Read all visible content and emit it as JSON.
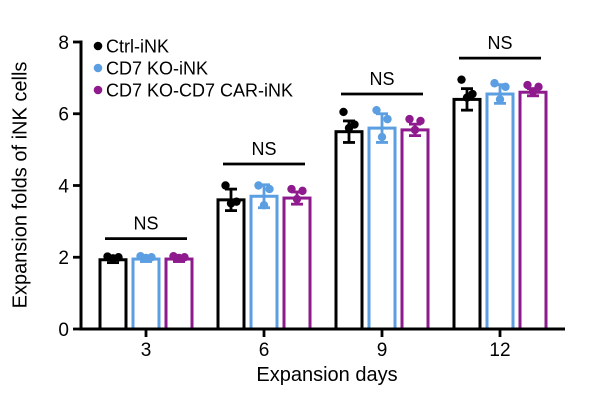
{
  "figure": {
    "background": "#ffffff",
    "axis_color": "#000000",
    "text_color": "#000000"
  },
  "chart_data": {
    "type": "bar",
    "title": "",
    "xlabel": "Expansion days",
    "ylabel": "Expansion folds of iNK cells",
    "ylim": [
      0,
      8
    ],
    "yticks": [
      0,
      2,
      4,
      6,
      8
    ],
    "categories": [
      "3",
      "6",
      "9",
      "12"
    ],
    "grid": false,
    "bar_fill": "#ffffff",
    "legend_position": "top-left",
    "series": [
      {
        "name": "Ctrl-iNK",
        "color": "#000000",
        "values": [
          1.93,
          3.6,
          5.5,
          6.4
        ],
        "sd": [
          0.08,
          0.3,
          0.3,
          0.3
        ],
        "points": [
          [
            2.02,
            2.0,
            1.97
          ],
          [
            4.0,
            3.55,
            3.5
          ],
          [
            6.05,
            5.7,
            5.6
          ],
          [
            6.95,
            6.55,
            6.45
          ]
        ]
      },
      {
        "name": "CD7 KO-iNK",
        "color": "#5B9EE1",
        "values": [
          1.95,
          3.7,
          5.6,
          6.55
        ],
        "sd": [
          0.07,
          0.32,
          0.4,
          0.26
        ],
        "points": [
          [
            2.03,
            2.0,
            1.98
          ],
          [
            4.0,
            3.9,
            3.45
          ],
          [
            6.1,
            5.85,
            5.35
          ],
          [
            6.85,
            6.75,
            6.4
          ]
        ]
      },
      {
        "name": "CD7 KO-CD7 CAR-iNK",
        "color": "#8E1A8E",
        "values": [
          1.95,
          3.65,
          5.55,
          6.6
        ],
        "sd": [
          0.07,
          0.17,
          0.16,
          0.1
        ],
        "points": [
          [
            2.03,
            2.0,
            1.98
          ],
          [
            3.9,
            3.85,
            3.62
          ],
          [
            5.85,
            5.8,
            5.55
          ],
          [
            6.8,
            6.75,
            6.62
          ]
        ]
      }
    ],
    "annotations": [
      {
        "label": "NS",
        "group": 0,
        "y": 2.52
      },
      {
        "label": "NS",
        "group": 1,
        "y": 4.6
      },
      {
        "label": "NS",
        "group": 2,
        "y": 6.55
      },
      {
        "label": "NS",
        "group": 3,
        "y": 7.55
      }
    ]
  }
}
